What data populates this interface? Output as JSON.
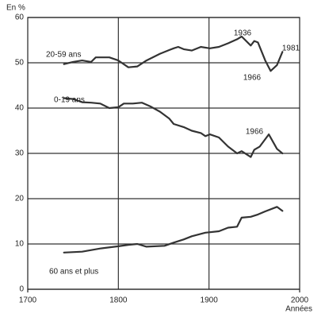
{
  "chart_data": {
    "type": "line",
    "y_label": "En %",
    "x_label": "Années",
    "xlim": [
      1700,
      2000
    ],
    "xticks": [
      1700,
      1800,
      1900,
      2000
    ],
    "ylim": [
      0,
      60
    ],
    "yticks": [
      0,
      10,
      20,
      30,
      40,
      50,
      60
    ],
    "grid": true,
    "series": [
      {
        "name": "20-59 ans",
        "color": "#333333",
        "x": [
          1740,
          1750,
          1760,
          1770,
          1775,
          1790,
          1800,
          1811,
          1821,
          1831,
          1846,
          1856,
          1861,
          1866,
          1872,
          1881,
          1891,
          1901,
          1911,
          1921,
          1931,
          1936,
          1946,
          1950,
          1954,
          1962,
          1968,
          1975,
          1981
        ],
        "values": [
          49.7,
          50.2,
          50.5,
          50.2,
          51.2,
          51.2,
          50.5,
          49,
          49.2,
          50.5,
          52,
          52.8,
          53.2,
          53.5,
          53,
          52.7,
          53.5,
          53.2,
          53.5,
          54.3,
          55.2,
          55.8,
          53.8,
          54.8,
          54.5,
          50.5,
          48.2,
          49.5,
          52.4
        ]
      },
      {
        "name": "0-19 ans",
        "color": "#333333",
        "x": [
          1740,
          1750,
          1760,
          1770,
          1780,
          1790,
          1800,
          1806,
          1816,
          1826,
          1836,
          1846,
          1856,
          1861,
          1872,
          1881,
          1891,
          1896,
          1901,
          1911,
          1921,
          1931,
          1936,
          1946,
          1950,
          1956,
          1966,
          1975,
          1981
        ],
        "values": [
          42.2,
          42,
          41.3,
          41.2,
          41,
          40,
          40.2,
          41,
          41,
          41.2,
          40.3,
          39.2,
          37.7,
          36.5,
          35.8,
          35,
          34.5,
          33.8,
          34.2,
          33.5,
          31.5,
          30,
          30.5,
          29.2,
          30.8,
          31.5,
          34.2,
          31,
          30
        ]
      },
      {
        "name": "60 ans et plus",
        "color": "#333333",
        "x": [
          1740,
          1760,
          1780,
          1800,
          1811,
          1821,
          1831,
          1851,
          1861,
          1872,
          1881,
          1896,
          1911,
          1921,
          1931,
          1936,
          1946,
          1954,
          1962,
          1975,
          1981
        ],
        "values": [
          8.1,
          8.3,
          9,
          9.5,
          9.8,
          10,
          9.4,
          9.6,
          10.3,
          11,
          11.7,
          12.5,
          12.8,
          13.6,
          13.8,
          15.8,
          16,
          16.5,
          17.2,
          18.2,
          17.3
        ]
      }
    ],
    "annotations": [
      "1936",
      "1966",
      "1966",
      "1981"
    ]
  }
}
